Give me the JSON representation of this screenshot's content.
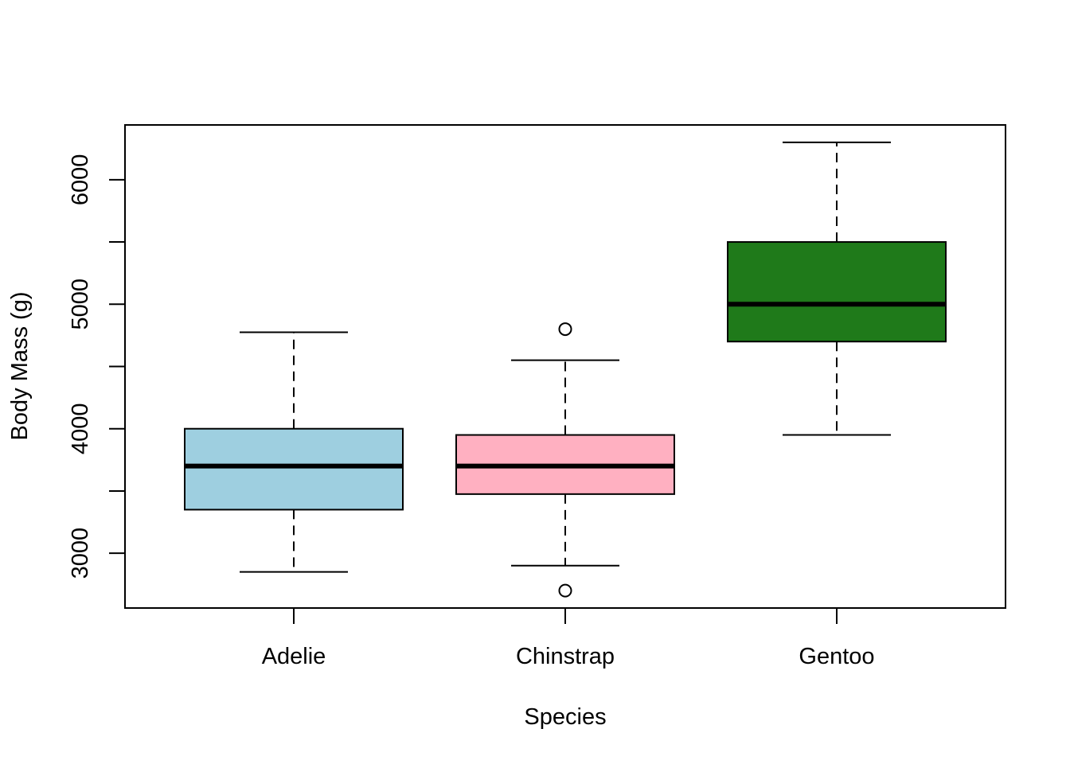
{
  "chart_data": {
    "type": "boxplot",
    "title": "",
    "xlabel": "Species",
    "ylabel": "Body Mass (g)",
    "ylim": [
      2560,
      6440
    ],
    "yticks": [
      3000,
      3500,
      4000,
      4500,
      5000,
      5500,
      6000
    ],
    "ytick_labels": [
      "3000",
      "",
      "4000",
      "",
      "5000",
      "",
      "6000"
    ],
    "grid": false,
    "legend": "none",
    "categories": [
      "Adelie",
      "Chinstrap",
      "Gentoo"
    ],
    "boxes": [
      {
        "category": "Adelie",
        "whisker_low": 2850,
        "q1": 3350,
        "median": 3700,
        "q3": 4000,
        "whisker_high": 4775,
        "outliers": [],
        "color": "#9ecfe0"
      },
      {
        "category": "Chinstrap",
        "whisker_low": 2900,
        "q1": 3475,
        "median": 3700,
        "q3": 3950,
        "whisker_high": 4550,
        "outliers": [
          4800,
          2700
        ],
        "color": "#ffb0c1"
      },
      {
        "category": "Gentoo",
        "whisker_low": 3950,
        "q1": 4700,
        "median": 5000,
        "q3": 5500,
        "whisker_high": 6300,
        "outliers": [],
        "color": "#1f7a1a"
      }
    ]
  }
}
